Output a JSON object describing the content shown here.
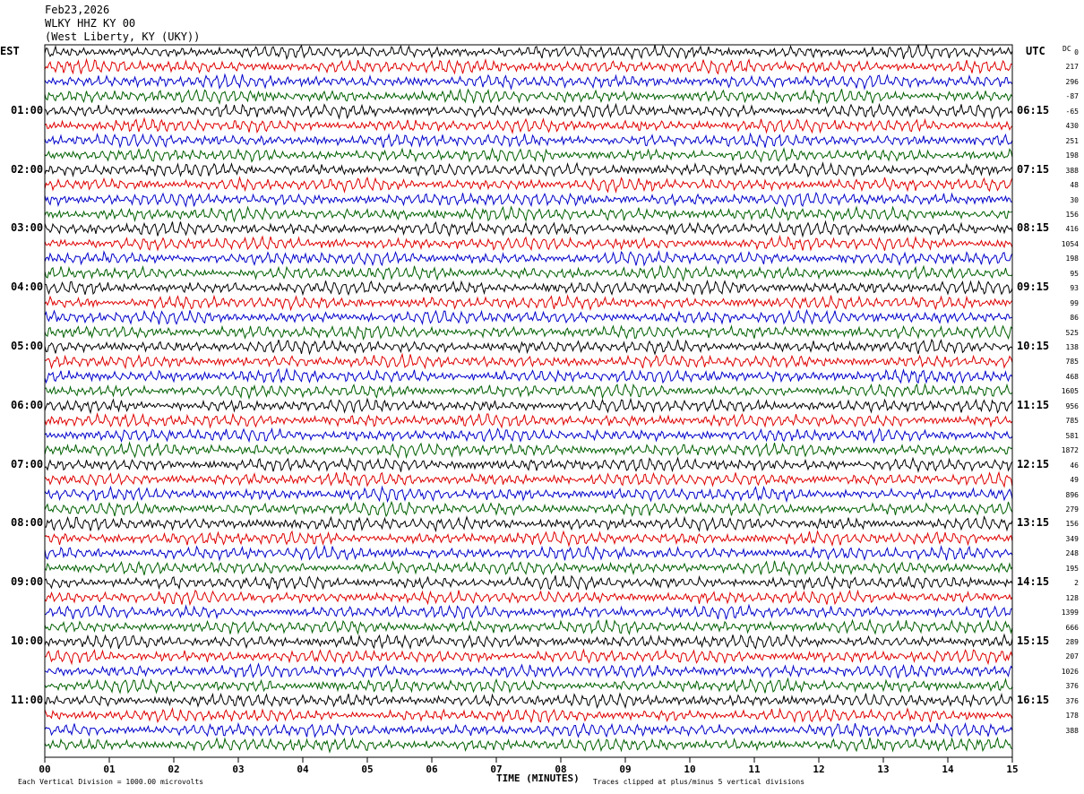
{
  "header": {
    "date": "Feb23,2026",
    "station": "WLKY HHZ KY 00",
    "location": "(West Liberty, KY (UKY))"
  },
  "left_zone": "EST",
  "right_zone": "UTC",
  "dc_header": "DC",
  "footer": {
    "left_note": "Each Vertical Division = 1000.00 microvolts",
    "axis_title": "TIME (MINUTES)",
    "right_note": "Traces clipped at plus/minus 5 vertical divisions"
  },
  "chart_data": {
    "type": "line",
    "title": "WLKY HHZ KY 00",
    "xlabel": "TIME (MINUTES)",
    "ylabel": "",
    "xlim": [
      0,
      15
    ],
    "x_ticks": [
      "00",
      "01",
      "02",
      "03",
      "04",
      "05",
      "06",
      "07",
      "08",
      "09",
      "10",
      "11",
      "12",
      "13",
      "14",
      "15"
    ],
    "trace_colors": [
      "#000000",
      "#e00000",
      "#0000cc",
      "#006000"
    ],
    "trace_count": 48,
    "left_time_labels": [
      "01:00",
      "02:00",
      "03:00",
      "04:00",
      "05:00",
      "06:00",
      "07:00",
      "08:00",
      "09:00",
      "10:00",
      "11:00"
    ],
    "right_time_labels": [
      "06:15",
      "07:15",
      "08:15",
      "09:15",
      "10:15",
      "11:15",
      "12:15",
      "13:15",
      "14:15",
      "15:15",
      "16:15"
    ],
    "dc_offsets": [
      "0",
      "217",
      "296",
      "-87",
      "-65",
      "430",
      "251",
      "198",
      "388",
      "48",
      "30",
      "156",
      "416",
      "1054",
      "198",
      "95",
      "93",
      "99",
      "86",
      "525",
      "138",
      "785",
      "468",
      "1605",
      "956",
      "785",
      "581",
      "1872",
      "46",
      "49",
      "896",
      "279",
      "156",
      "349",
      "248",
      "195",
      "2",
      "128",
      "1399",
      "666",
      "289",
      "207",
      "1026",
      "376",
      "376",
      "178",
      "388"
    ],
    "grid": false
  }
}
